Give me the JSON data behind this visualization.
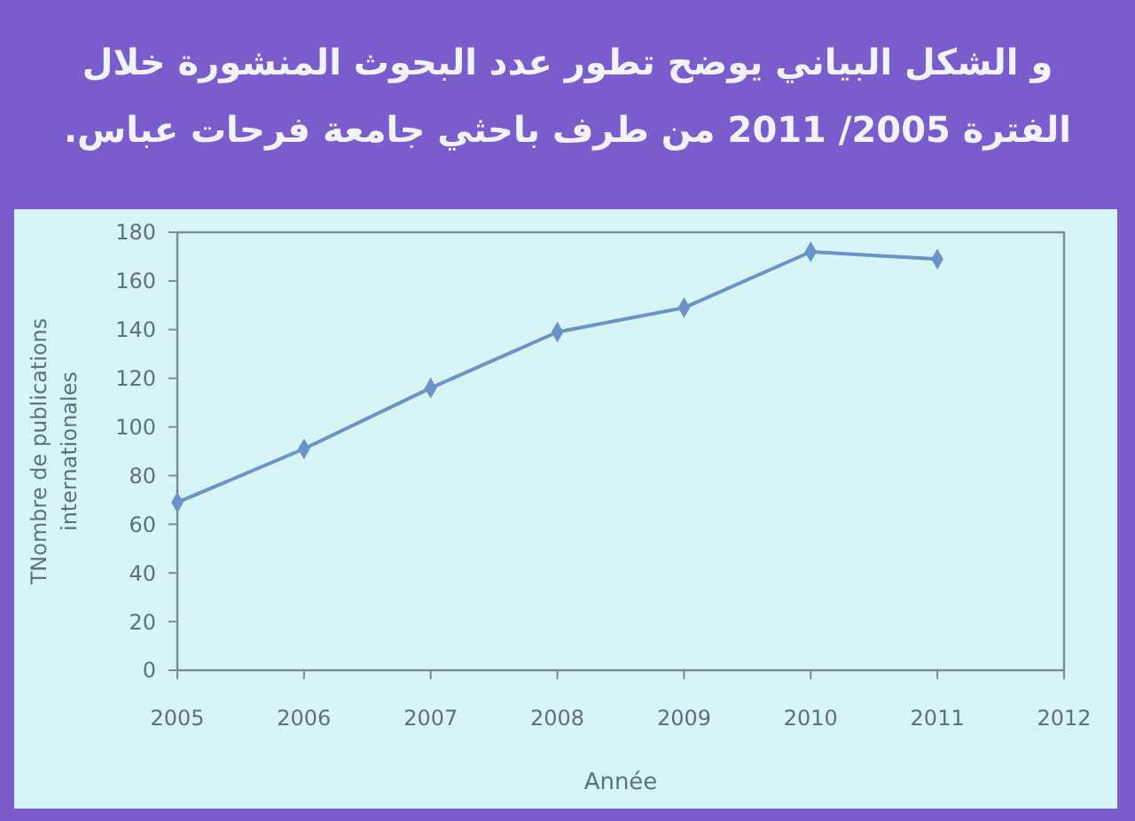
{
  "chart_data": {
    "type": "line",
    "title": "و الشكل البياني يوضح تطور عدد البحوث المنشورة خلال\nالفترة 2005/ 2011 من طرف باحثي جامعة فرحات عباس.",
    "xlabel": "Année",
    "ylabel": "TNombre de publications\ninternationales",
    "x": [
      2005,
      2006,
      2007,
      2008,
      2009,
      2010,
      2011
    ],
    "values": [
      69,
      91,
      116,
      139,
      149,
      172,
      169
    ],
    "color": "#6b93c9",
    "xlim": [
      2005,
      2012
    ],
    "xticks": [
      2005,
      2006,
      2007,
      2008,
      2009,
      2010,
      2011,
      2012
    ],
    "ylim": [
      0,
      180
    ],
    "yticks": [
      0,
      20,
      40,
      60,
      80,
      100,
      120,
      140,
      160,
      180
    ],
    "marker": "diamond",
    "line_style": "solid"
  }
}
